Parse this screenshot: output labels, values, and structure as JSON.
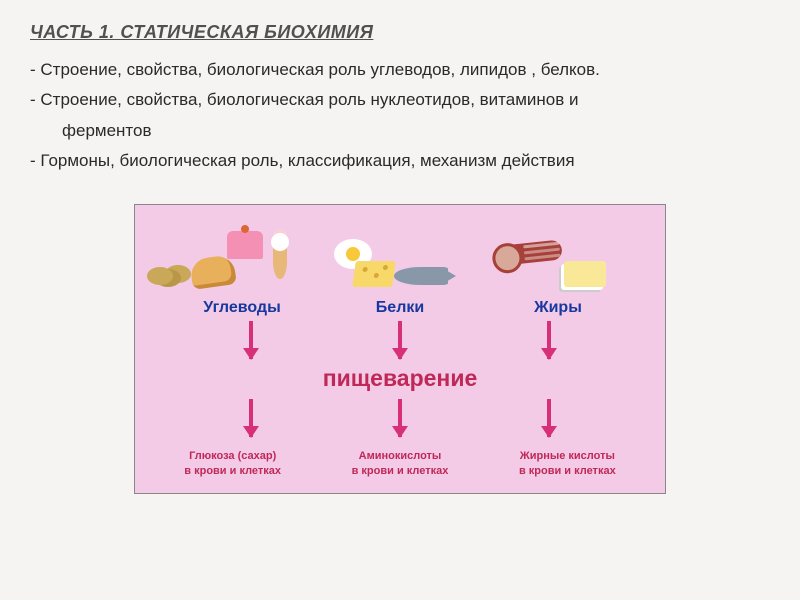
{
  "title": "ЧАСТЬ 1. СТАТИЧЕСКАЯ БИОХИМИЯ",
  "bullets": [
    "- Строение, свойства, биологическая роль углеводов, липидов , белков.",
    "- Строение, свойства, биологическая роль нуклеотидов, витаминов и",
    "ферментов",
    " - Гормоны, биологическая  роль, классификация, механизм действия"
  ],
  "diagram": {
    "background_color": "#f3cbe7",
    "border_color": "#888888",
    "arrow_color": "#d83078",
    "category_label_color": "#1838a0",
    "process_label_color": "#c02858",
    "result_label_color": "#c02858",
    "categories": [
      {
        "label": "Углеводы",
        "result_line1": "Глюкоза (сахар)",
        "result_line2": "в крови и клетках"
      },
      {
        "label": "Белки",
        "result_line1": "Аминокислоты",
        "result_line2": "в крови и клетках"
      },
      {
        "label": "Жиры",
        "result_line1": "Жирные кислоты",
        "result_line2": "в крови и клетках"
      }
    ],
    "process_label": "пищеварение"
  }
}
